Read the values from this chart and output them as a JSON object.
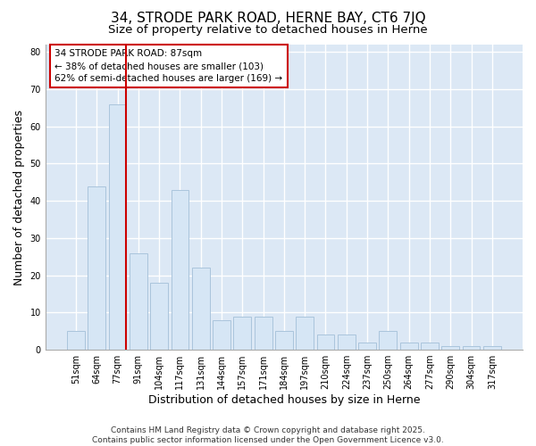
{
  "title1": "34, STRODE PARK ROAD, HERNE BAY, CT6 7JQ",
  "title2": "Size of property relative to detached houses in Herne",
  "xlabel": "Distribution of detached houses by size in Herne",
  "ylabel": "Number of detached properties",
  "categories": [
    "51sqm",
    "64sqm",
    "77sqm",
    "91sqm",
    "104sqm",
    "117sqm",
    "131sqm",
    "144sqm",
    "157sqm",
    "171sqm",
    "184sqm",
    "197sqm",
    "210sqm",
    "224sqm",
    "237sqm",
    "250sqm",
    "264sqm",
    "277sqm",
    "290sqm",
    "304sqm",
    "317sqm"
  ],
  "values": [
    5,
    44,
    66,
    26,
    18,
    43,
    22,
    8,
    9,
    9,
    5,
    9,
    4,
    4,
    2,
    5,
    2,
    2,
    1,
    1,
    1
  ],
  "bar_color": "#d6e6f5",
  "bar_edgecolor": "#aac4dc",
  "vline_color": "#cc0000",
  "vline_index": 2,
  "ylim": [
    0,
    82
  ],
  "yticks": [
    0,
    10,
    20,
    30,
    40,
    50,
    60,
    70,
    80
  ],
  "annotation_text": "34 STRODE PARK ROAD: 87sqm\n← 38% of detached houses are smaller (103)\n62% of semi-detached houses are larger (169) →",
  "footer_text": "Contains HM Land Registry data © Crown copyright and database right 2025.\nContains public sector information licensed under the Open Government Licence v3.0.",
  "bg_color": "#ffffff",
  "plot_bg_color": "#dce8f5",
  "grid_color": "#ffffff",
  "title_fontsize": 11,
  "subtitle_fontsize": 9.5,
  "tick_fontsize": 7,
  "label_fontsize": 9,
  "footer_fontsize": 6.5
}
